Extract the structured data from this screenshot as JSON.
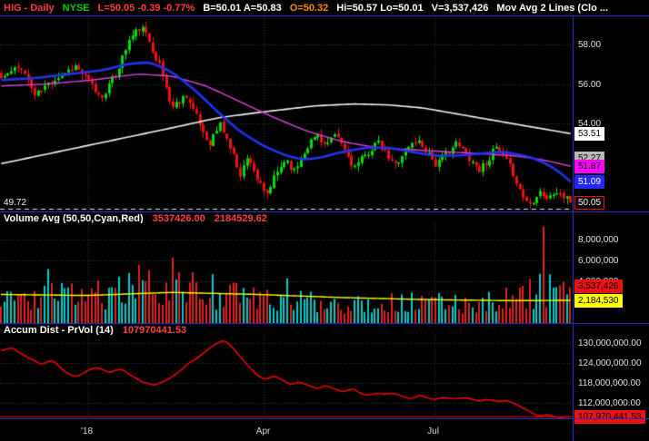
{
  "header": {
    "segments": [
      {
        "text": "HIG - Daily",
        "color": "#ff3b3b"
      },
      {
        "text": "NYSE",
        "color": "#00cc00"
      },
      {
        "text": "L=50.05  -0.39  -0.77%",
        "color": "#ff3b3b"
      },
      {
        "text": "B=50.01  A=50.83",
        "color": "#ffffff"
      },
      {
        "text": "O=50.32",
        "color": "#ff8c00"
      },
      {
        "text": "Hi=50.57  Lo=50.01",
        "color": "#ffffff"
      },
      {
        "text": "V=3,537,426",
        "color": "#ffffff"
      },
      {
        "text": "Mov Avg 2 Lines (Clo ...",
        "color": "#ffffff"
      }
    ]
  },
  "quote": {
    "symbol": "HIG",
    "timeframe": "Daily",
    "exchange": "NYSE",
    "last": 50.05,
    "change": -0.39,
    "change_pct": -0.77,
    "bid": 50.01,
    "ask": 50.83,
    "open": 50.32,
    "high": 50.57,
    "low": 50.01,
    "volume": 3537426
  },
  "price_panel": {
    "ylim": [
      49.6,
      59.4
    ],
    "gridlines": [
      {
        "value": 58,
        "label": "58.00"
      },
      {
        "value": 56,
        "label": "56.00"
      },
      {
        "value": 54,
        "label": "54.00"
      }
    ],
    "dashed_line": {
      "value": 49.72,
      "label": "49.72"
    },
    "flags": [
      {
        "label": "53.51",
        "value": 53.51,
        "bg": "#ffffff",
        "fg": "#000000"
      },
      {
        "label": "52.27",
        "value": 52.27,
        "bg": "#b8b8b8",
        "fg": "#000000"
      },
      {
        "label": "51.87",
        "value": 51.87,
        "bg": "#ff00ff",
        "fg": "#000000"
      },
      {
        "label": "51.09",
        "value": 51.09,
        "bg": "#2626ff",
        "fg": "#ffffff"
      },
      {
        "label": "50.05",
        "value": 50.05,
        "bg": "#000000",
        "fg": "#ffffff",
        "border": "#ff0000"
      }
    ]
  },
  "volume_panel": {
    "title": "Volume Avg (50,50,Cyan,Red)",
    "value1": "3537426.00",
    "value2": "2184529.62",
    "ylim": [
      0,
      9600000
    ],
    "gridlines": [
      {
        "value": 8000000,
        "label": "8,000,000"
      },
      {
        "value": 6000000,
        "label": "6,000,000"
      },
      {
        "value": 4000000,
        "label": "4,000,000"
      }
    ],
    "flags": [
      {
        "label": "3,537,426",
        "value": 3537426,
        "bg": "#ee1111",
        "fg": "#000000"
      },
      {
        "label": "2,184,530",
        "value": 2184530,
        "bg": "#ffff00",
        "fg": "#000000"
      }
    ]
  },
  "accum_panel": {
    "title": "Accum Dist - PrVol (14)",
    "value": "107970441.53",
    "ylim_millions": [
      107.5,
      132.5
    ],
    "gridlines": [
      {
        "value": 130,
        "label": "130,000,000.00"
      },
      {
        "value": 124,
        "label": "124,000,000.00"
      },
      {
        "value": 118,
        "label": "118,000,000.00"
      },
      {
        "value": 112,
        "label": "112,000,000.00"
      }
    ],
    "flag": {
      "label": "107,970,441.53",
      "value": 107.97,
      "bg": "#ee1111",
      "fg": "#000000"
    }
  },
  "xaxis": {
    "labels": [
      {
        "text": "'18",
        "f": 0.154
      },
      {
        "text": "Apr",
        "f": 0.46
      },
      {
        "text": "Jul",
        "f": 0.759
      }
    ]
  },
  "chart_data": {
    "type": "candlestick",
    "title": "HIG - Daily NYSE",
    "n_bars": 170,
    "seed": 11,
    "x_labels": [
      "'18",
      "Apr",
      "Jul"
    ],
    "price": {
      "ylim": [
        49.6,
        59.4
      ],
      "noise": 0.38,
      "up_color": "#00dd00",
      "down_color": "#f01010",
      "close_anchors": [
        [
          0.0,
          56.3
        ],
        [
          0.035,
          56.9
        ],
        [
          0.06,
          55.4
        ],
        [
          0.09,
          56.2
        ],
        [
          0.13,
          56.9
        ],
        [
          0.155,
          56.1
        ],
        [
          0.175,
          55.3
        ],
        [
          0.2,
          56.4
        ],
        [
          0.225,
          58.2
        ],
        [
          0.245,
          58.9
        ],
        [
          0.26,
          58.2
        ],
        [
          0.28,
          56.8
        ],
        [
          0.3,
          54.8
        ],
        [
          0.325,
          55.5
        ],
        [
          0.345,
          54.2
        ],
        [
          0.365,
          53.0
        ],
        [
          0.385,
          54.0
        ],
        [
          0.4,
          53.0
        ],
        [
          0.42,
          51.5
        ],
        [
          0.435,
          52.4
        ],
        [
          0.45,
          51.2
        ],
        [
          0.465,
          50.3
        ],
        [
          0.48,
          51.3
        ],
        [
          0.5,
          52.3
        ],
        [
          0.515,
          51.6
        ],
        [
          0.535,
          52.8
        ],
        [
          0.555,
          53.5
        ],
        [
          0.57,
          52.9
        ],
        [
          0.59,
          53.4
        ],
        [
          0.605,
          52.6
        ],
        [
          0.62,
          51.8
        ],
        [
          0.64,
          52.4
        ],
        [
          0.66,
          53.1
        ],
        [
          0.675,
          52.5
        ],
        [
          0.69,
          51.9
        ],
        [
          0.71,
          52.7
        ],
        [
          0.73,
          53.2
        ],
        [
          0.75,
          52.6
        ],
        [
          0.765,
          51.9
        ],
        [
          0.78,
          52.5
        ],
        [
          0.8,
          53.0
        ],
        [
          0.82,
          52.4
        ],
        [
          0.84,
          51.7
        ],
        [
          0.855,
          52.2
        ],
        [
          0.87,
          52.8
        ],
        [
          0.885,
          52.2
        ],
        [
          0.9,
          51.5
        ],
        [
          0.915,
          50.4
        ],
        [
          0.93,
          49.95
        ],
        [
          0.945,
          50.7
        ],
        [
          0.96,
          50.2
        ],
        [
          0.975,
          50.6
        ],
        [
          1.0,
          50.05
        ]
      ]
    },
    "moving_averages": [
      {
        "name": "ma-white-200",
        "color": "#f5f5f5",
        "width": 1.6,
        "points": [
          [
            0,
            52.0
          ],
          [
            0.1,
            52.6
          ],
          [
            0.2,
            53.2
          ],
          [
            0.3,
            53.8
          ],
          [
            0.38,
            54.3
          ],
          [
            0.46,
            54.6
          ],
          [
            0.55,
            54.9
          ],
          [
            0.62,
            55.0
          ],
          [
            0.68,
            54.95
          ],
          [
            0.74,
            54.8
          ],
          [
            0.8,
            54.5
          ],
          [
            0.86,
            54.2
          ],
          [
            0.92,
            53.9
          ],
          [
            1,
            53.51
          ]
        ]
      },
      {
        "name": "ma-magenta",
        "color": "#e040e0",
        "width": 1.4,
        "points": [
          [
            0,
            55.9
          ],
          [
            0.08,
            56.0
          ],
          [
            0.16,
            56.2
          ],
          [
            0.24,
            56.5
          ],
          [
            0.3,
            56.4
          ],
          [
            0.36,
            55.9
          ],
          [
            0.42,
            55.1
          ],
          [
            0.48,
            54.3
          ],
          [
            0.54,
            53.6
          ],
          [
            0.6,
            53.1
          ],
          [
            0.66,
            52.8
          ],
          [
            0.72,
            52.7
          ],
          [
            0.78,
            52.6
          ],
          [
            0.84,
            52.5
          ],
          [
            0.9,
            52.4
          ],
          [
            0.95,
            52.2
          ],
          [
            1,
            51.87
          ]
        ]
      },
      {
        "name": "ma-blue",
        "color": "#2233ee",
        "width": 2.6,
        "points": [
          [
            0,
            56.2
          ],
          [
            0.06,
            56.3
          ],
          [
            0.12,
            56.5
          ],
          [
            0.18,
            56.7
          ],
          [
            0.22,
            57.0
          ],
          [
            0.26,
            57.1
          ],
          [
            0.3,
            56.6
          ],
          [
            0.34,
            55.7
          ],
          [
            0.38,
            54.6
          ],
          [
            0.42,
            53.6
          ],
          [
            0.46,
            52.9
          ],
          [
            0.5,
            52.4
          ],
          [
            0.53,
            52.2
          ],
          [
            0.56,
            52.3
          ],
          [
            0.6,
            52.6
          ],
          [
            0.64,
            52.8
          ],
          [
            0.68,
            52.8
          ],
          [
            0.72,
            52.6
          ],
          [
            0.76,
            52.4
          ],
          [
            0.8,
            52.4
          ],
          [
            0.84,
            52.5
          ],
          [
            0.88,
            52.6
          ],
          [
            0.92,
            52.4
          ],
          [
            0.95,
            52.1
          ],
          [
            0.98,
            51.6
          ],
          [
            1,
            51.09
          ]
        ]
      }
    ],
    "volume": {
      "ylim": [
        0,
        9600000
      ],
      "up_color": "#00cccc",
      "down_color": "#dd2222",
      "base_anchors": [
        [
          0,
          2600000
        ],
        [
          0.06,
          2300000
        ],
        [
          0.12,
          2700000
        ],
        [
          0.2,
          2900000
        ],
        [
          0.26,
          3400000
        ],
        [
          0.3,
          3600000
        ],
        [
          0.36,
          2900000
        ],
        [
          0.42,
          2500000
        ],
        [
          0.5,
          2200000
        ],
        [
          0.6,
          2000000
        ],
        [
          0.7,
          1900000
        ],
        [
          0.78,
          1900000
        ],
        [
          0.86,
          2100000
        ],
        [
          0.92,
          2600000
        ],
        [
          0.96,
          3400000
        ],
        [
          1,
          3300000
        ]
      ],
      "spikes": [
        [
          0.085,
          5200000
        ],
        [
          0.245,
          5600000
        ],
        [
          0.3,
          6300000
        ],
        [
          0.315,
          4900000
        ],
        [
          0.375,
          4700000
        ],
        [
          0.5,
          4300000
        ],
        [
          0.955,
          9300000
        ]
      ],
      "avg_line": {
        "color": "#ffff00",
        "width": 1.4,
        "points": [
          [
            0,
            2750000
          ],
          [
            0.15,
            2650000
          ],
          [
            0.3,
            2950000
          ],
          [
            0.45,
            2750000
          ],
          [
            0.6,
            2450000
          ],
          [
            0.75,
            2250000
          ],
          [
            0.9,
            2150000
          ],
          [
            1,
            2184530
          ]
        ]
      }
    },
    "accum_dist": {
      "ylim_millions": [
        107.5,
        132.5
      ],
      "color": "#ee0000",
      "width": 1.6,
      "last": 107970441.53,
      "last_millions": 107.97,
      "points_millions": [
        [
          0,
          127.5
        ],
        [
          0.02,
          128.6
        ],
        [
          0.045,
          126.0
        ],
        [
          0.07,
          123.5
        ],
        [
          0.09,
          124.8
        ],
        [
          0.11,
          122.0
        ],
        [
          0.13,
          119.8
        ],
        [
          0.15,
          121.5
        ],
        [
          0.17,
          122.8
        ],
        [
          0.19,
          121.2
        ],
        [
          0.21,
          122.3
        ],
        [
          0.23,
          120.0
        ],
        [
          0.25,
          118.2
        ],
        [
          0.27,
          117.2
        ],
        [
          0.29,
          118.8
        ],
        [
          0.31,
          121.0
        ],
        [
          0.33,
          124.0
        ],
        [
          0.355,
          127.0
        ],
        [
          0.375,
          129.3
        ],
        [
          0.39,
          130.8
        ],
        [
          0.405,
          129.0
        ],
        [
          0.42,
          126.0
        ],
        [
          0.435,
          123.0
        ],
        [
          0.45,
          120.5
        ],
        [
          0.465,
          119.0
        ],
        [
          0.48,
          120.3
        ],
        [
          0.495,
          118.8
        ],
        [
          0.51,
          117.6
        ],
        [
          0.525,
          118.6
        ],
        [
          0.54,
          117.2
        ],
        [
          0.555,
          116.2
        ],
        [
          0.57,
          117.3
        ],
        [
          0.585,
          116.4
        ],
        [
          0.6,
          115.4
        ],
        [
          0.615,
          116.4
        ],
        [
          0.63,
          115.2
        ],
        [
          0.645,
          114.2
        ],
        [
          0.66,
          115.3
        ],
        [
          0.675,
          114.4
        ],
        [
          0.69,
          115.2
        ],
        [
          0.705,
          114.2
        ],
        [
          0.72,
          113.4
        ],
        [
          0.735,
          114.6
        ],
        [
          0.75,
          113.6
        ],
        [
          0.765,
          112.8
        ],
        [
          0.78,
          113.8
        ],
        [
          0.795,
          113.0
        ],
        [
          0.81,
          114.0
        ],
        [
          0.825,
          113.2
        ],
        [
          0.84,
          112.6
        ],
        [
          0.855,
          113.4
        ],
        [
          0.87,
          112.4
        ],
        [
          0.885,
          113.0
        ],
        [
          0.9,
          112.0
        ],
        [
          0.915,
          110.8
        ],
        [
          0.93,
          109.6
        ],
        [
          0.945,
          108.2
        ],
        [
          0.96,
          109.0
        ],
        [
          0.975,
          107.8
        ],
        [
          1,
          107.97
        ]
      ]
    }
  }
}
